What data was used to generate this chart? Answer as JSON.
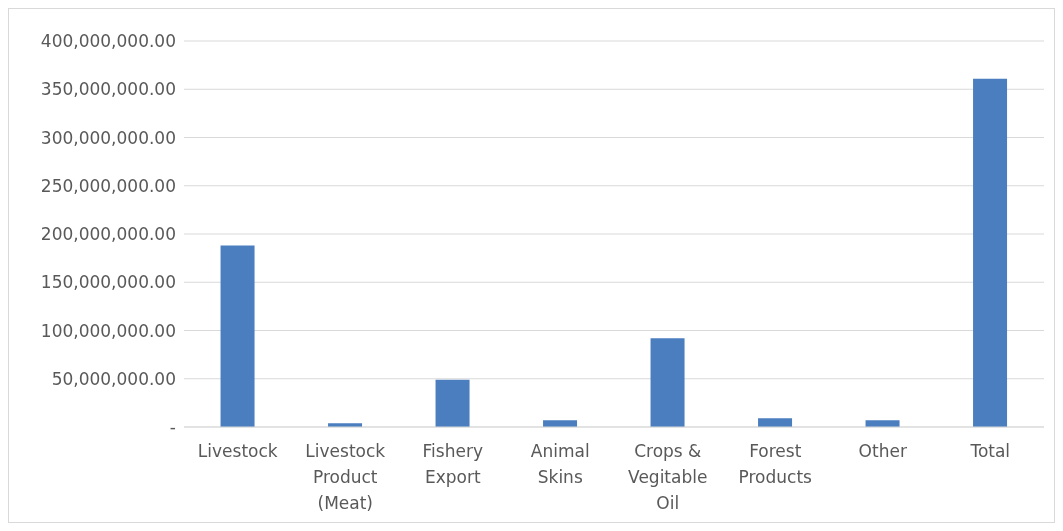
{
  "chart_data": {
    "type": "bar",
    "categories": [
      "Livestock",
      "Livestock Product (Meat)",
      "Fishery Export",
      "Animal Skins",
      "Crops & Vegitable Oil",
      "Forest Products",
      "Other",
      "Total"
    ],
    "values": [
      188000000,
      4000000,
      49000000,
      7000000,
      92000000,
      9000000,
      7000000,
      361000000
    ],
    "color": "#4a7ebf",
    "ylim": [
      0,
      400000000
    ],
    "yticks": [
      {
        "value": 0,
        "label": "-"
      },
      {
        "value": 50000000,
        "label": "50,000,000.00"
      },
      {
        "value": 100000000,
        "label": "100,000,000.00"
      },
      {
        "value": 150000000,
        "label": "150,000,000.00"
      },
      {
        "value": 200000000,
        "label": "200,000,000.00"
      },
      {
        "value": 250000000,
        "label": "250,000,000.00"
      },
      {
        "value": 300000000,
        "label": "300,000,000.00"
      },
      {
        "value": 350000000,
        "label": "350,000,000.00"
      },
      {
        "value": 400000000,
        "label": "400,000,000.00"
      }
    ],
    "grid": "y"
  }
}
